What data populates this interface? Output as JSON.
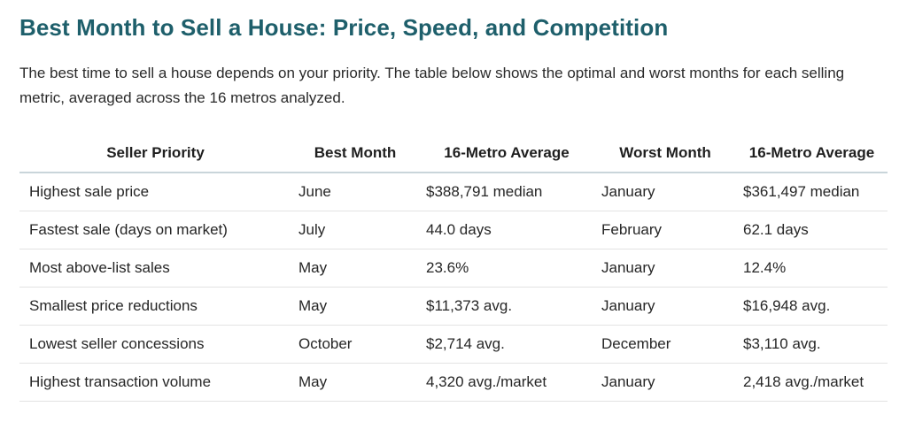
{
  "page": {
    "title": "Best Month to Sell a House: Price, Speed, and Competition",
    "intro": "The best time to sell a house depends on your priority. The table below shows the optimal and worst months for each selling metric, averaged across the 16 metros analyzed."
  },
  "table": {
    "headers": [
      "Seller Priority",
      "Best Month",
      "16-Metro Average",
      "Worst Month",
      "16-Metro Average"
    ],
    "rows": [
      [
        "Highest sale price",
        "June",
        "$388,791 median",
        "January",
        "$361,497 median"
      ],
      [
        "Fastest sale (days on market)",
        "July",
        "44.0 days",
        "February",
        "62.1 days"
      ],
      [
        "Most above-list sales",
        "May",
        "23.6%",
        "January",
        "12.4%"
      ],
      [
        "Smallest price reductions",
        "May",
        "$11,373 avg.",
        "January",
        "$16,948 avg."
      ],
      [
        "Lowest seller concessions",
        "October",
        "$2,714 avg.",
        "December",
        "$3,110 avg."
      ],
      [
        "Highest transaction volume",
        "May",
        "4,320 avg./market",
        "January",
        "2,418 avg./market"
      ]
    ]
  }
}
